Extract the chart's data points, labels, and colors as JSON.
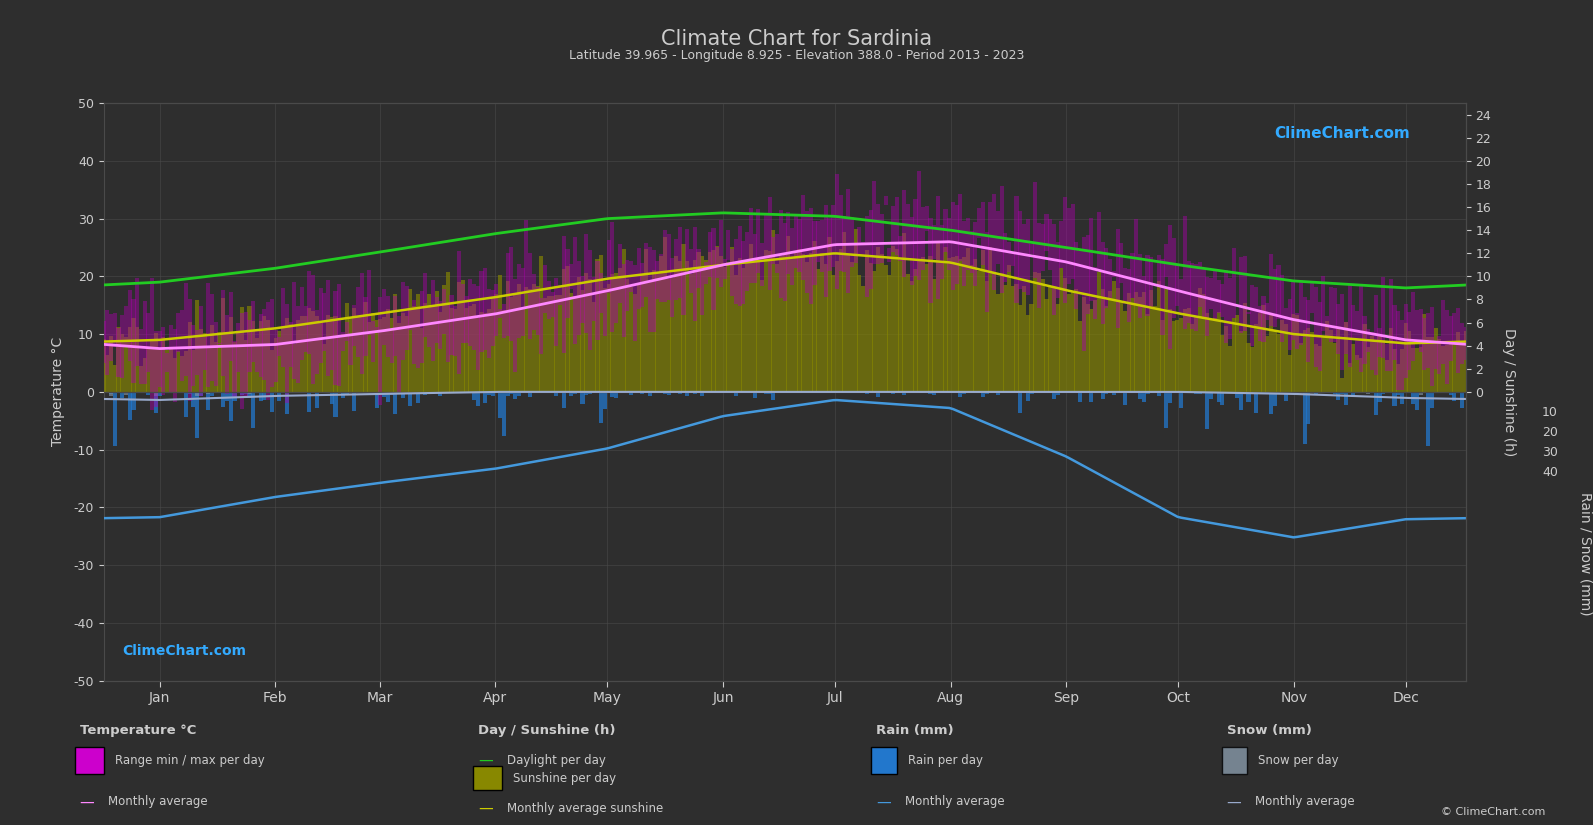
{
  "title": "Climate Chart for Sardinia",
  "subtitle": "Latitude 39.965 - Longitude 8.925 - Elevation 388.0 - Period 2013 - 2023",
  "background_color": "#2e2e2e",
  "text_color": "#cccccc",
  "grid_color": "#4a4a4a",
  "months": [
    "Jan",
    "Feb",
    "Mar",
    "Apr",
    "May",
    "Jun",
    "Jul",
    "Aug",
    "Sep",
    "Oct",
    "Nov",
    "Dec"
  ],
  "temp_avg_monthly": [
    7.5,
    8.2,
    10.5,
    13.5,
    17.5,
    22.0,
    25.5,
    26.0,
    22.5,
    17.5,
    12.5,
    9.0
  ],
  "temp_min_monthly": [
    2.5,
    3.0,
    5.5,
    8.5,
    12.5,
    17.0,
    20.5,
    21.0,
    17.5,
    13.0,
    8.0,
    4.5
  ],
  "temp_max_monthly": [
    13.0,
    14.0,
    16.5,
    19.5,
    23.5,
    28.0,
    31.5,
    31.5,
    28.0,
    23.0,
    17.5,
    14.0
  ],
  "daylight_monthly": [
    9.5,
    10.7,
    12.1,
    13.7,
    15.0,
    15.5,
    15.2,
    14.0,
    12.5,
    11.0,
    9.6,
    9.0
  ],
  "sunshine_monthly": [
    4.5,
    5.5,
    6.8,
    8.2,
    9.8,
    11.0,
    12.0,
    11.2,
    8.8,
    6.8,
    5.0,
    4.2
  ],
  "rain_monthly_mm": [
    62,
    52,
    45,
    38,
    28,
    12,
    4,
    8,
    32,
    62,
    72,
    63
  ],
  "snow_monthly_mm": [
    4,
    2,
    1,
    0,
    0,
    0,
    0,
    0,
    0,
    0,
    1,
    3
  ],
  "rain_color": "#2277cc",
  "snow_color": "#8899aa",
  "temp_range_color": "#aa00aa",
  "daylight_color": "#22cc22",
  "sunshine_bar_color": "#888800",
  "sunshine_line_color": "#cccc00",
  "temp_avg_color": "#ff88ff",
  "rain_avg_color": "#4499dd",
  "snow_avg_color": "#99aacc",
  "logo_color": "#33aaff",
  "logo_text": "ClimeChart.com",
  "copyright_text": "© ClimeChart.com",
  "temp_ylim": [
    -50,
    50
  ],
  "sunshine_scale": 2.0,
  "rain_scale": 0.35,
  "month_centers": [
    15,
    46,
    74,
    105,
    135,
    166,
    196,
    227,
    258,
    288,
    319,
    349
  ]
}
